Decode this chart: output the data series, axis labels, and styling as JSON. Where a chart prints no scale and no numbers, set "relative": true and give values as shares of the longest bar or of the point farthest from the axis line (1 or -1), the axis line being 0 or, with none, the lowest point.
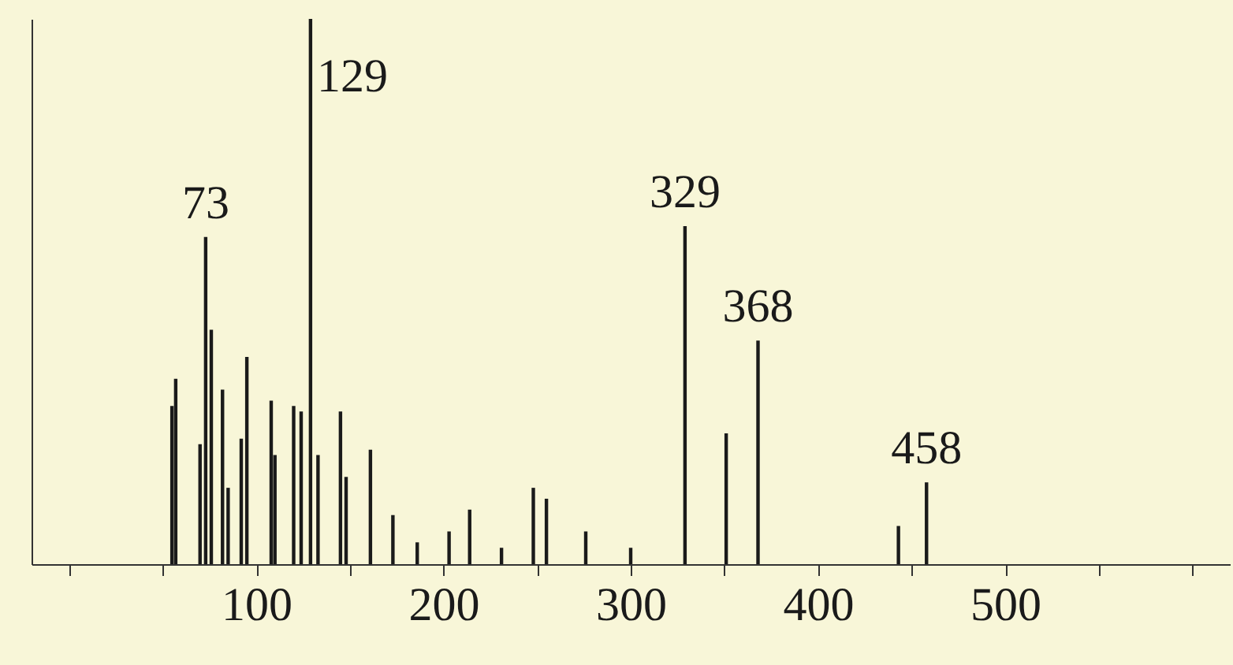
{
  "chart_data": {
    "type": "bar",
    "relative": true,
    "color": "#1a1a1a",
    "x": [
      55,
      57,
      70,
      73,
      76,
      82,
      85,
      92,
      95,
      108,
      110,
      120,
      124,
      129,
      133,
      145,
      148,
      161,
      173,
      186,
      203,
      214,
      231,
      248,
      255,
      276,
      300,
      329,
      351,
      368,
      443,
      458
    ],
    "values": [
      0.29,
      0.34,
      0.22,
      0.6,
      0.43,
      0.32,
      0.14,
      0.23,
      0.38,
      0.3,
      0.2,
      0.29,
      0.28,
      1,
      0.2,
      0.28,
      0.16,
      0.21,
      0.09,
      0.04,
      0.06,
      0.1,
      0.03,
      0.14,
      0.12,
      0.06,
      0.03,
      0.62,
      0.24,
      0.41,
      0.07,
      0.15
    ],
    "xlim": [
      -20,
      620
    ],
    "xticks": [
      {
        "value": 0,
        "label": null
      },
      {
        "value": 50,
        "label": null
      },
      100,
      {
        "value": 150,
        "label": null
      },
      200,
      {
        "value": 250,
        "label": null
      },
      300,
      {
        "value": 350,
        "label": null
      },
      400,
      {
        "value": 450,
        "label": null
      },
      500,
      {
        "value": 550,
        "label": null
      },
      {
        "value": 600,
        "label": null
      }
    ],
    "annotations": [
      {
        "text": "73",
        "x": 73,
        "y": 0.6
      },
      {
        "text": "129",
        "x": 129,
        "y": 1
      },
      {
        "text": "329",
        "x": 329,
        "y": 0.62
      },
      {
        "text": "368",
        "x": 368,
        "y": 0.41
      },
      {
        "text": "458",
        "x": 458,
        "y": 0.15
      }
    ]
  }
}
